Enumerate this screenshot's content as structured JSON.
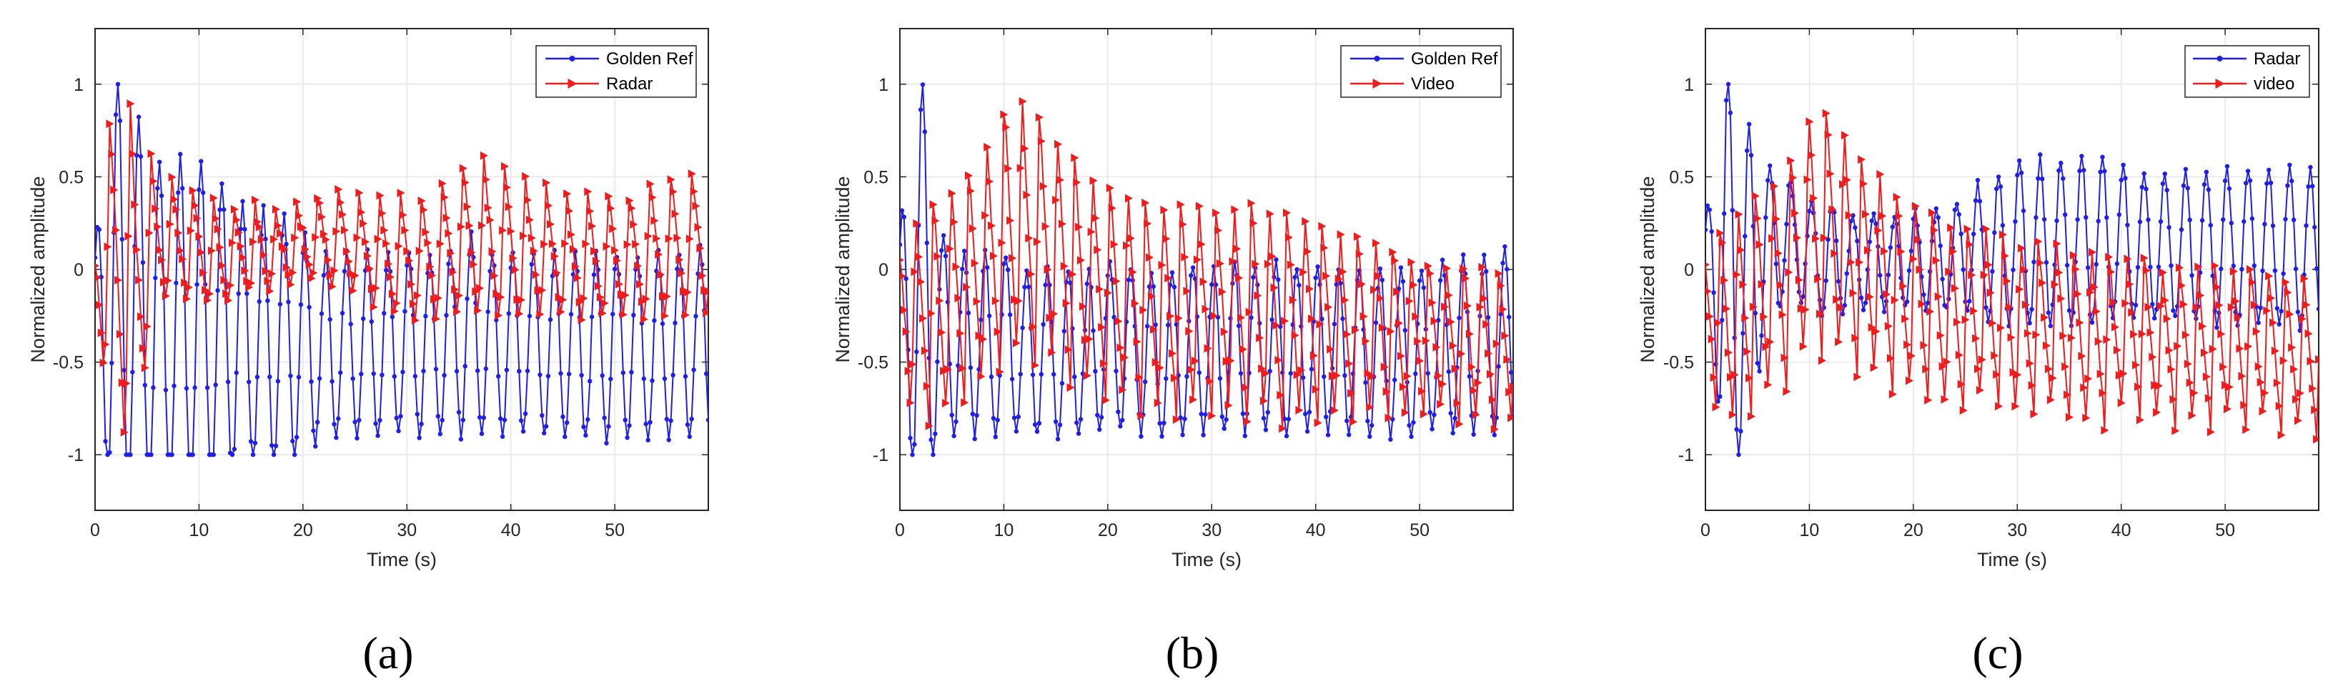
{
  "figure": {
    "colors": {
      "blue": "#1f1fe6",
      "red": "#ee1c1c",
      "grid": "#e6e6e6",
      "axis": "#262626"
    },
    "panels": [
      {
        "caption": "(a)"
      },
      {
        "caption": "(b)"
      },
      {
        "caption": "(c)"
      }
    ]
  },
  "chart_data": [
    {
      "type": "line",
      "title": "",
      "xlabel": "Time (s)",
      "ylabel": "Normalized amplitude",
      "xlim": [
        0,
        59
      ],
      "ylim": [
        -1.3,
        1.3
      ],
      "xticks": [
        0,
        10,
        20,
        30,
        40,
        50
      ],
      "yticks": [
        -1,
        -0.5,
        0,
        0.5,
        1
      ],
      "legend": "top-right",
      "grid": true,
      "sample_rate_hz": 5,
      "series": [
        {
          "name": "Golden Ref",
          "color": "blue",
          "marker": "dot",
          "period_s": 2.0,
          "phase_s": 0.2,
          "mean": -0.35,
          "ampl": [
            0.5,
            1.2,
            1.1,
            0.95,
            0.95,
            0.95,
            0.85,
            0.7,
            0.7,
            0.7,
            0.6,
            0.5,
            0.5,
            0.5,
            0.5,
            0.5,
            0.5,
            0.5,
            0.55,
            0.5,
            0.5,
            0.5,
            0.5,
            0.5,
            0.5,
            0.5,
            0.5,
            0.5,
            0.5,
            0.5,
            0.5
          ],
          "mid": [
            -0.35,
            -0.15,
            -0.25,
            -0.35,
            -0.35,
            -0.35,
            -0.35,
            -0.35,
            -0.38,
            -0.4,
            -0.4,
            -0.42,
            -0.42,
            -0.42,
            -0.4,
            -0.4,
            -0.4,
            -0.4,
            -0.35,
            -0.4,
            -0.4,
            -0.4,
            -0.42,
            -0.42,
            -0.42,
            -0.42,
            -0.42,
            -0.42,
            -0.42,
            -0.4,
            -0.38
          ]
        },
        {
          "name": "Radar",
          "color": "red",
          "marker": "triangle-right",
          "period_s": 2.0,
          "phase_s": 0.9,
          "mean": 0.15,
          "ampl": [
            0.3,
            1.0,
            0.9,
            0.35,
            0.35,
            0.3,
            0.3,
            0.25,
            0.25,
            0.2,
            0.25,
            0.25,
            0.3,
            0.3,
            0.35,
            0.35,
            0.35,
            0.4,
            0.45,
            0.45,
            0.42,
            0.4,
            0.35,
            0.35,
            0.35,
            0.35,
            0.35,
            0.4,
            0.4,
            0.42,
            0.42
          ],
          "mid": [
            -0.05,
            0.0,
            -0.05,
            0.15,
            0.15,
            0.1,
            0.05,
            0.1,
            0.1,
            0.1,
            0.15,
            0.15,
            0.15,
            0.1,
            0.05,
            0.05,
            0.05,
            0.1,
            0.15,
            0.15,
            0.12,
            0.1,
            0.08,
            0.05,
            0.05,
            0.05,
            0.05,
            0.1,
            0.1,
            0.12,
            0.15
          ]
        }
      ]
    },
    {
      "type": "line",
      "title": "",
      "xlabel": "Time (s)",
      "ylabel": "Normalized amplitude",
      "xlim": [
        0,
        59
      ],
      "ylim": [
        -1.3,
        1.3
      ],
      "xticks": [
        0,
        10,
        20,
        30,
        40,
        50
      ],
      "yticks": [
        -1,
        -0.5,
        0,
        0.5,
        1
      ],
      "legend": "top-right",
      "grid": true,
      "sample_rate_hz": 5,
      "series": [
        {
          "name": "Golden Ref",
          "color": "blue",
          "marker": "dot",
          "period_s": 2.0,
          "phase_s": 0.2,
          "mean": -0.4,
          "ampl": [
            0.5,
            1.2,
            0.55,
            0.5,
            0.5,
            0.5,
            0.45,
            0.45,
            0.45,
            0.45,
            0.45,
            0.45,
            0.45,
            0.45,
            0.45,
            0.45,
            0.45,
            0.45,
            0.45,
            0.45,
            0.45,
            0.45,
            0.45,
            0.45,
            0.45,
            0.45,
            0.45,
            0.5,
            0.5,
            0.5,
            0.5
          ],
          "mid": [
            -0.3,
            -0.1,
            -0.35,
            -0.4,
            -0.4,
            -0.4,
            -0.45,
            -0.45,
            -0.45,
            -0.45,
            -0.42,
            -0.42,
            -0.45,
            -0.45,
            -0.42,
            -0.42,
            -0.42,
            -0.42,
            -0.42,
            -0.42,
            -0.42,
            -0.42,
            -0.45,
            -0.45,
            -0.45,
            -0.45,
            -0.42,
            -0.4,
            -0.4,
            -0.38,
            -0.4
          ]
        },
        {
          "name": "Video",
          "color": "red",
          "marker": "triangle-right",
          "period_s": 1.7,
          "phase_s": 1.1,
          "mean": -0.2,
          "ampl": [
            0.45,
            0.6,
            0.65,
            0.65,
            0.7,
            0.75,
            0.75,
            0.7,
            0.65,
            0.65,
            0.6,
            0.6,
            0.6,
            0.6,
            0.6,
            0.6,
            0.6,
            0.6,
            0.6,
            0.6,
            0.55,
            0.55,
            0.55,
            0.5,
            0.5,
            0.45,
            0.45,
            0.45,
            0.45,
            0.45,
            0.45
          ],
          "mid": [
            -0.25,
            -0.25,
            -0.2,
            -0.1,
            0.0,
            0.2,
            0.25,
            0.15,
            0.05,
            -0.05,
            -0.1,
            -0.15,
            -0.2,
            -0.2,
            -0.2,
            -0.2,
            -0.2,
            -0.2,
            -0.25,
            -0.25,
            -0.25,
            -0.3,
            -0.3,
            -0.3,
            -0.35,
            -0.35,
            -0.35,
            -0.4,
            -0.4,
            -0.4,
            -0.4
          ]
        }
      ]
    },
    {
      "type": "line",
      "title": "",
      "xlabel": "Time (s)",
      "ylabel": "Normalized amplitude",
      "xlim": [
        0,
        59
      ],
      "ylim": [
        -1.3,
        1.3
      ],
      "xticks": [
        0,
        10,
        20,
        30,
        40,
        50
      ],
      "yticks": [
        -1,
        -0.5,
        0,
        0.5,
        1
      ],
      "legend": "top-right",
      "grid": true,
      "sample_rate_hz": 5,
      "series": [
        {
          "name": "Radar",
          "color": "blue",
          "marker": "dot",
          "period_s": 2.0,
          "phase_s": 0.2,
          "mean": 0.15,
          "ampl": [
            0.2,
            1.1,
            0.9,
            0.4,
            0.35,
            0.3,
            0.3,
            0.25,
            0.25,
            0.25,
            0.25,
            0.25,
            0.3,
            0.35,
            0.4,
            0.45,
            0.45,
            0.45,
            0.45,
            0.45,
            0.42,
            0.4,
            0.4,
            0.4,
            0.42,
            0.42,
            0.42,
            0.42,
            0.42,
            0.42,
            0.42
          ],
          "mid": [
            0.05,
            0.0,
            -0.1,
            0.15,
            0.15,
            0.1,
            0.05,
            0.05,
            0.05,
            0.05,
            0.05,
            0.05,
            0.05,
            0.1,
            0.1,
            0.15,
            0.15,
            0.15,
            0.15,
            0.15,
            0.15,
            0.12,
            0.12,
            0.12,
            0.12,
            0.12,
            0.12,
            0.12,
            0.12,
            0.12,
            0.12
          ]
        },
        {
          "name": "video",
          "color": "red",
          "marker": "triangle-right",
          "period_s": 1.7,
          "phase_s": 1.0,
          "mean": -0.25,
          "ampl": [
            0.4,
            0.6,
            0.6,
            0.6,
            0.65,
            0.7,
            0.7,
            0.65,
            0.6,
            0.6,
            0.55,
            0.55,
            0.55,
            0.5,
            0.5,
            0.5,
            0.5,
            0.5,
            0.5,
            0.5,
            0.45,
            0.45,
            0.45,
            0.45,
            0.45,
            0.45,
            0.45,
            0.45,
            0.45,
            0.45,
            0.45
          ],
          "mid": [
            -0.2,
            -0.3,
            -0.2,
            -0.1,
            0.0,
            0.2,
            0.25,
            0.1,
            0.0,
            -0.1,
            -0.15,
            -0.2,
            -0.25,
            -0.25,
            -0.25,
            -0.3,
            -0.3,
            -0.3,
            -0.35,
            -0.35,
            -0.35,
            -0.35,
            -0.4,
            -0.4,
            -0.4,
            -0.4,
            -0.4,
            -0.4,
            -0.45,
            -0.45,
            -0.45
          ]
        }
      ]
    }
  ]
}
